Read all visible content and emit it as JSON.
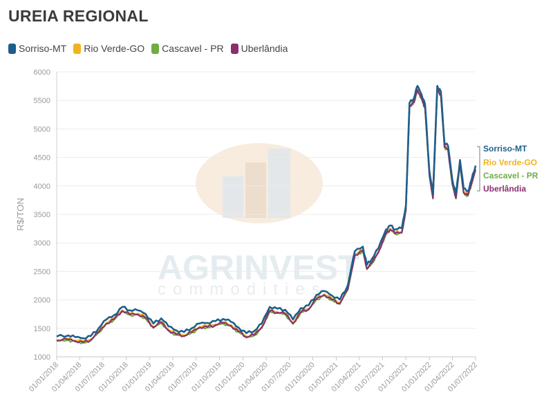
{
  "chart_data": {
    "type": "line",
    "title": "UREIA REGIONAL",
    "ylabel": "R$/TON",
    "xlabel": "",
    "ylim": [
      1000,
      6000
    ],
    "yticks": [
      1000,
      1500,
      2000,
      2500,
      3000,
      3500,
      4000,
      4500,
      5000,
      5500,
      6000
    ],
    "xlim": [
      "2018-01-01",
      "2022-07-01"
    ],
    "xticks": [
      "01/01/2018",
      "01/04/2018",
      "01/07/2018",
      "01/10/2018",
      "01/01/2019",
      "01/04/2019",
      "01/07/2019",
      "01/10/2019",
      "01/01/2020",
      "01/04/2020",
      "01/07/2020",
      "01/10/2020",
      "01/01/2021",
      "01/04/2021",
      "01/07/2021",
      "01/10/2021",
      "01/01/2022",
      "01/04/2022",
      "01/07/2022"
    ],
    "grid": "horizontal",
    "legend_position": "top-left",
    "end_labels": [
      "Sorriso-MT",
      "Rio Verde-GO",
      "Cascavel - PR",
      "Uberlândia"
    ],
    "watermark": "AGRINVEST commodities",
    "base": {
      "x": [
        "2018-01-01",
        "2018-02-15",
        "2018-03-15",
        "2018-04-15",
        "2018-05-15",
        "2018-06-15",
        "2018-07-15",
        "2018-08-15",
        "2018-09-15",
        "2018-10-15",
        "2018-11-15",
        "2018-12-15",
        "2019-01-15",
        "2019-02-15",
        "2019-03-15",
        "2019-04-15",
        "2019-05-15",
        "2019-06-15",
        "2019-07-15",
        "2019-08-15",
        "2019-09-15",
        "2019-10-15",
        "2019-11-15",
        "2019-12-15",
        "2020-01-15",
        "2020-02-15",
        "2020-03-15",
        "2020-04-15",
        "2020-05-15",
        "2020-06-15",
        "2020-07-15",
        "2020-08-15",
        "2020-09-15",
        "2020-10-15",
        "2020-11-15",
        "2020-12-15",
        "2021-01-15",
        "2021-02-15",
        "2021-03-15",
        "2021-04-15",
        "2021-05-01",
        "2021-05-20",
        "2021-06-15",
        "2021-07-15",
        "2021-08-01",
        "2021-08-20",
        "2021-09-15",
        "2021-10-01",
        "2021-10-15",
        "2021-11-01",
        "2021-11-15",
        "2021-12-01",
        "2021-12-15",
        "2022-01-01",
        "2022-01-15",
        "2022-02-01",
        "2022-02-15",
        "2022-03-01",
        "2022-03-15",
        "2022-04-01",
        "2022-04-15",
        "2022-05-01",
        "2022-05-15",
        "2022-06-01",
        "2022-06-15",
        "2022-07-01"
      ],
      "y": [
        1300,
        1320,
        1290,
        1270,
        1310,
        1450,
        1600,
        1680,
        1820,
        1760,
        1760,
        1700,
        1530,
        1620,
        1480,
        1410,
        1380,
        1450,
        1530,
        1540,
        1570,
        1610,
        1560,
        1460,
        1360,
        1400,
        1530,
        1820,
        1790,
        1770,
        1600,
        1800,
        1850,
        2030,
        2100,
        2020,
        1950,
        2200,
        2800,
        2880,
        2560,
        2660,
        2850,
        3180,
        3250,
        3180,
        3200,
        3600,
        5400,
        5480,
        5700,
        5550,
        5380,
        4200,
        3800,
        5700,
        5600,
        4700,
        4650,
        4050,
        3800,
        4400,
        3900,
        3850,
        4050,
        4300
      ]
    },
    "series": [
      {
        "name": "Sorriso-MT",
        "color": "#1d5f8c",
        "offset": 55
      },
      {
        "name": "Rio Verde-GO",
        "color": "#f0b323",
        "offset": 0
      },
      {
        "name": "Cascavel - PR",
        "color": "#6fac46",
        "offset": -25
      },
      {
        "name": "Uberlândia",
        "color": "#8a2f6e",
        "offset": -15
      }
    ]
  }
}
